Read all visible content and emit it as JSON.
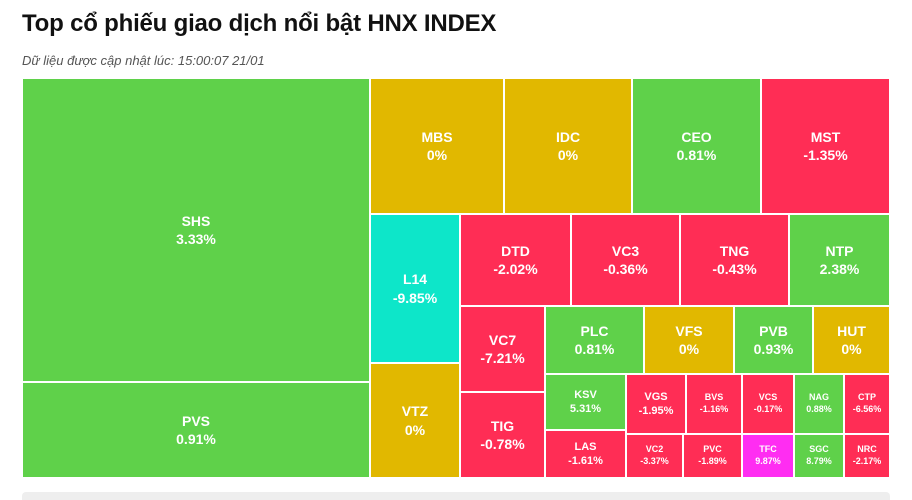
{
  "page": {
    "title": "Top cổ phiếu giao dịch nổi bật HNX INDEX",
    "updated": "Dữ liệu được cập nhật lúc: 15:00:07 21/01"
  },
  "colors": {
    "up": "#5fd14a",
    "ref": "#e1b800",
    "down": "#ff2d55",
    "floor": "#0de6c9",
    "ceiling": "#ff2df2"
  },
  "tiles": {
    "shs": {
      "symbol": "SHS",
      "change": "3.33%"
    },
    "pvs": {
      "symbol": "PVS",
      "change": "0.91%"
    },
    "mbs": {
      "symbol": "MBS",
      "change": "0%"
    },
    "idc": {
      "symbol": "IDC",
      "change": "0%"
    },
    "ceo": {
      "symbol": "CEO",
      "change": "0.81%"
    },
    "mst": {
      "symbol": "MST",
      "change": "-1.35%"
    },
    "l14": {
      "symbol": "L14",
      "change": "-9.85%"
    },
    "vtz": {
      "symbol": "VTZ",
      "change": "0%"
    },
    "dtd": {
      "symbol": "DTD",
      "change": "-2.02%"
    },
    "vc3": {
      "symbol": "VC3",
      "change": "-0.36%"
    },
    "tng": {
      "symbol": "TNG",
      "change": "-0.43%"
    },
    "ntp": {
      "symbol": "NTP",
      "change": "2.38%"
    },
    "vc7": {
      "symbol": "VC7",
      "change": "-7.21%"
    },
    "tig": {
      "symbol": "TIG",
      "change": "-0.78%"
    },
    "plc": {
      "symbol": "PLC",
      "change": "0.81%"
    },
    "vfs": {
      "symbol": "VFS",
      "change": "0%"
    },
    "pvb": {
      "symbol": "PVB",
      "change": "0.93%"
    },
    "hut": {
      "symbol": "HUT",
      "change": "0%"
    },
    "ksv": {
      "symbol": "KSV",
      "change": "5.31%"
    },
    "las": {
      "symbol": "LAS",
      "change": "-1.61%"
    },
    "vgs": {
      "symbol": "VGS",
      "change": "-1.95%"
    },
    "bvs": {
      "symbol": "BVS",
      "change": "-1.16%"
    },
    "vcs": {
      "symbol": "VCS",
      "change": "-0.17%"
    },
    "nag": {
      "symbol": "NAG",
      "change": "0.88%"
    },
    "ctp": {
      "symbol": "CTP",
      "change": "-6.56%"
    },
    "vc2": {
      "symbol": "VC2",
      "change": "-3.37%"
    },
    "pvc": {
      "symbol": "PVC",
      "change": "-1.89%"
    },
    "tfc": {
      "symbol": "TFC",
      "change": "9.87%"
    },
    "sgc": {
      "symbol": "SGC",
      "change": "8.79%"
    },
    "nrc": {
      "symbol": "NRC",
      "change": "-2.17%"
    }
  }
}
